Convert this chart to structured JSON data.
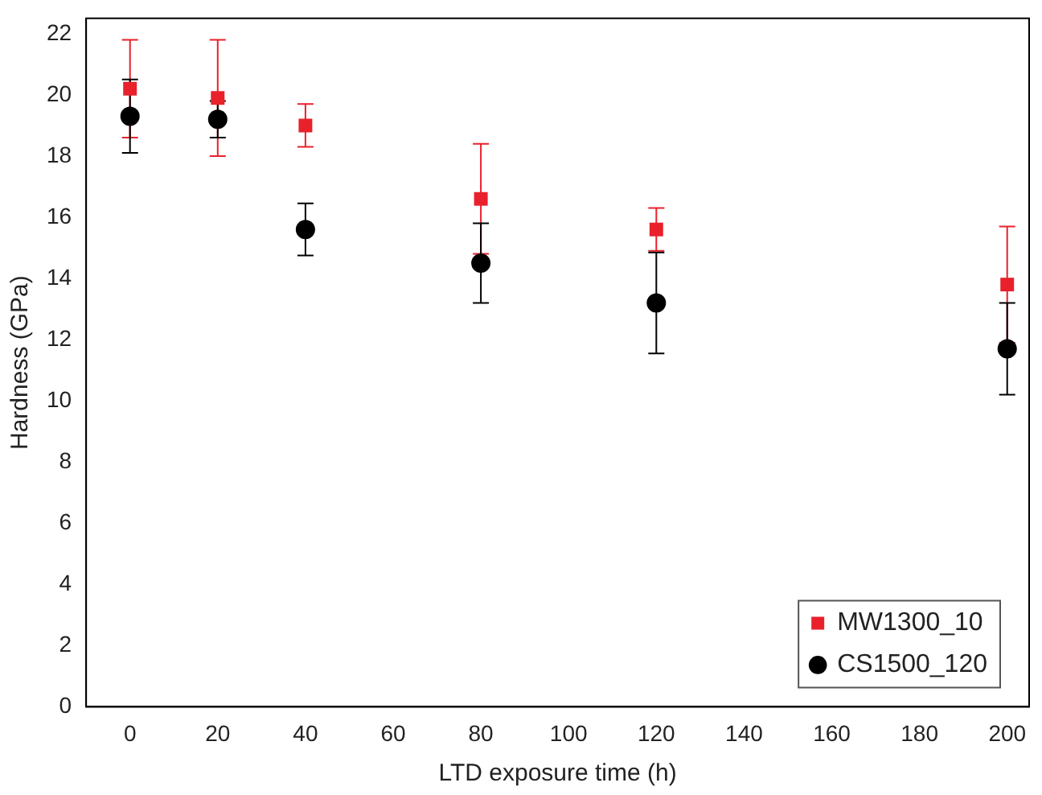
{
  "chart_data": {
    "type": "scatter",
    "xlabel": "LTD exposure time (h)",
    "ylabel": "Hardness (GPa)",
    "x": [
      0,
      20,
      40,
      80,
      120,
      200
    ],
    "series": [
      {
        "name": "MW1300_10",
        "color": "#e8212b",
        "marker": "square",
        "values": [
          20.2,
          19.9,
          19.0,
          16.6,
          15.6,
          13.8
        ],
        "errors": [
          1.6,
          1.9,
          0.7,
          1.8,
          0.7,
          1.9
        ]
      },
      {
        "name": "CS1500_120",
        "color": "#000000",
        "marker": "circle",
        "values": [
          19.3,
          19.2,
          15.6,
          14.5,
          13.2,
          11.7
        ],
        "errors": [
          1.2,
          0.6,
          0.85,
          1.3,
          1.65,
          1.5
        ]
      }
    ],
    "xlim": [
      -10,
      205
    ],
    "ylim": [
      0,
      22.5
    ],
    "xticks": [
      0,
      20,
      40,
      60,
      80,
      100,
      120,
      140,
      160,
      180,
      200
    ],
    "yticks": [
      0,
      2,
      4,
      6,
      8,
      10,
      12,
      14,
      16,
      18,
      20,
      22
    ],
    "grid": false,
    "legend": "bottom right"
  }
}
